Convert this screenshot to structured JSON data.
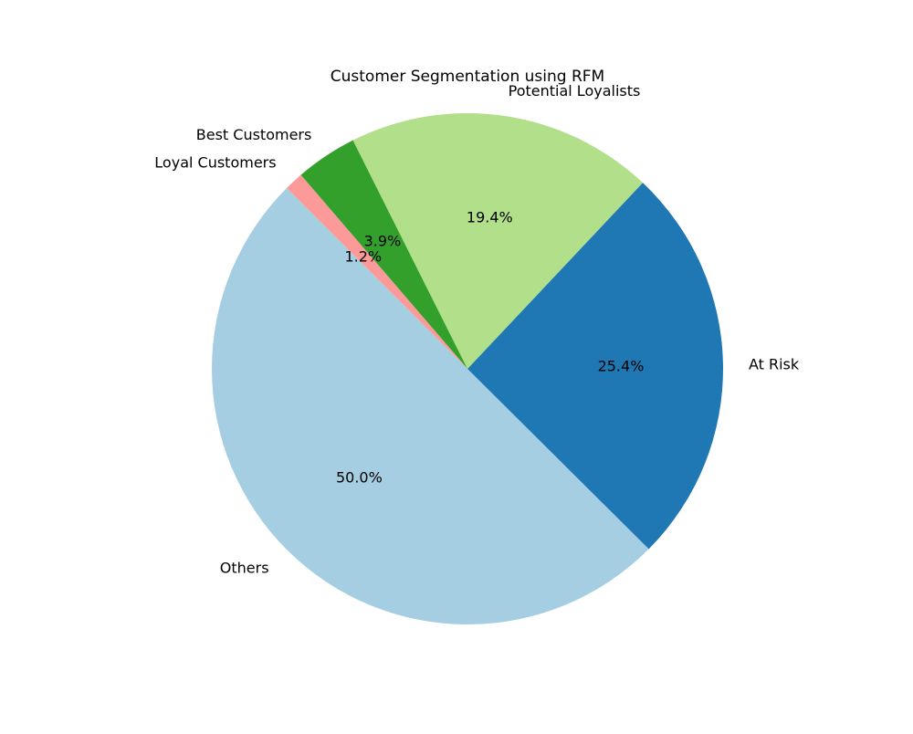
{
  "chart_data": {
    "type": "pie",
    "title": "Customer Segmentation using RFM",
    "labels": [
      "Others",
      "At Risk",
      "Potential Loyalists",
      "Best Customers",
      "Loyal Customers"
    ],
    "values": [
      50.0,
      25.4,
      19.4,
      3.9,
      1.2
    ],
    "percent_labels": [
      "50.0%",
      "25.4%",
      "19.4%",
      "3.9%",
      "1.2%"
    ],
    "colors": [
      "#a6cee3",
      "#1f78b4",
      "#b2df8a",
      "#33a02c",
      "#fb9a99"
    ],
    "start_angle_deg": 135,
    "direction": "counterclockwise",
    "legend": "none"
  }
}
